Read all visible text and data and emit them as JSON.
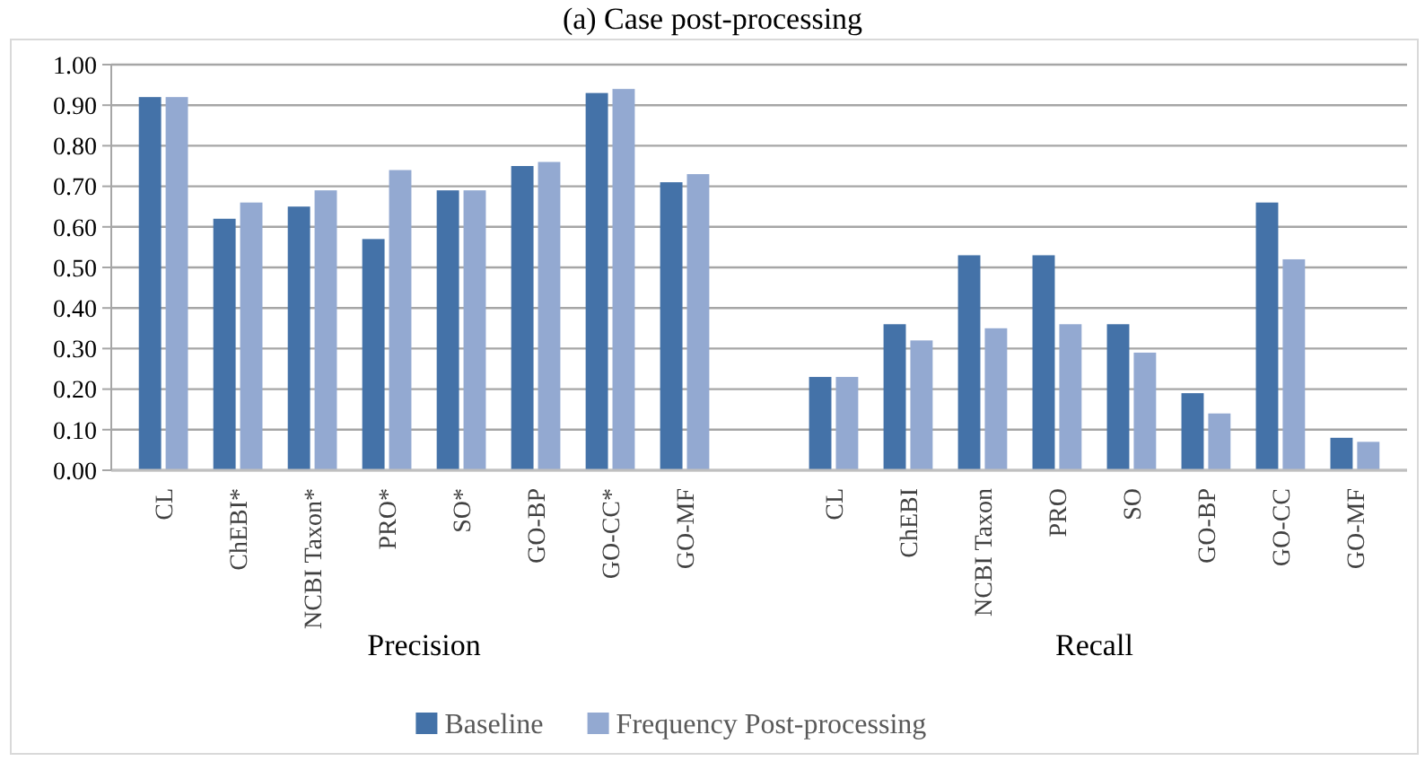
{
  "chart_data": {
    "type": "bar",
    "title": "(a) Case post-processing",
    "categories": [
      "CL",
      "ChEBI*",
      "NCBI Taxon*",
      "PRO*",
      "SO*",
      "GO-BP",
      "GO-CC*",
      "GO-MF",
      null,
      "CL",
      "ChEBI",
      "NCBI Taxon",
      "PRO",
      "SO",
      "GO-BP",
      "GO-CC",
      "GO-MF"
    ],
    "series": [
      {
        "name": "Baseline",
        "color": "#4472a8",
        "values": [
          0.92,
          0.62,
          0.65,
          0.57,
          0.69,
          0.75,
          0.93,
          0.71,
          null,
          0.23,
          0.36,
          0.53,
          0.53,
          0.36,
          0.19,
          0.66,
          0.08
        ]
      },
      {
        "name": "Frequency Post-processing",
        "color": "#93a9d1",
        "values": [
          0.92,
          0.66,
          0.69,
          0.74,
          0.69,
          0.76,
          0.94,
          0.73,
          null,
          0.23,
          0.32,
          0.35,
          0.36,
          0.29,
          0.14,
          0.52,
          0.07
        ]
      }
    ],
    "annotations": [
      "Precision",
      "Recall"
    ],
    "ylim": [
      0,
      1
    ],
    "yticks": [
      {
        "value": 0,
        "label": "0.00"
      },
      {
        "value": 0.1,
        "label": "0.10"
      },
      {
        "value": 0.2,
        "label": "0.20"
      },
      {
        "value": 0.3,
        "label": "0.30"
      },
      {
        "value": 0.4,
        "label": "0.40"
      },
      {
        "value": 0.5,
        "label": "0.50"
      },
      {
        "value": 0.6,
        "label": "0.60"
      },
      {
        "value": 0.7,
        "label": "0.70"
      },
      {
        "value": 0.8,
        "label": "0.80"
      },
      {
        "value": 0.9,
        "label": "0.90"
      },
      {
        "value": 1,
        "label": "1.00"
      }
    ],
    "grid": "y",
    "legend": "bottom"
  }
}
